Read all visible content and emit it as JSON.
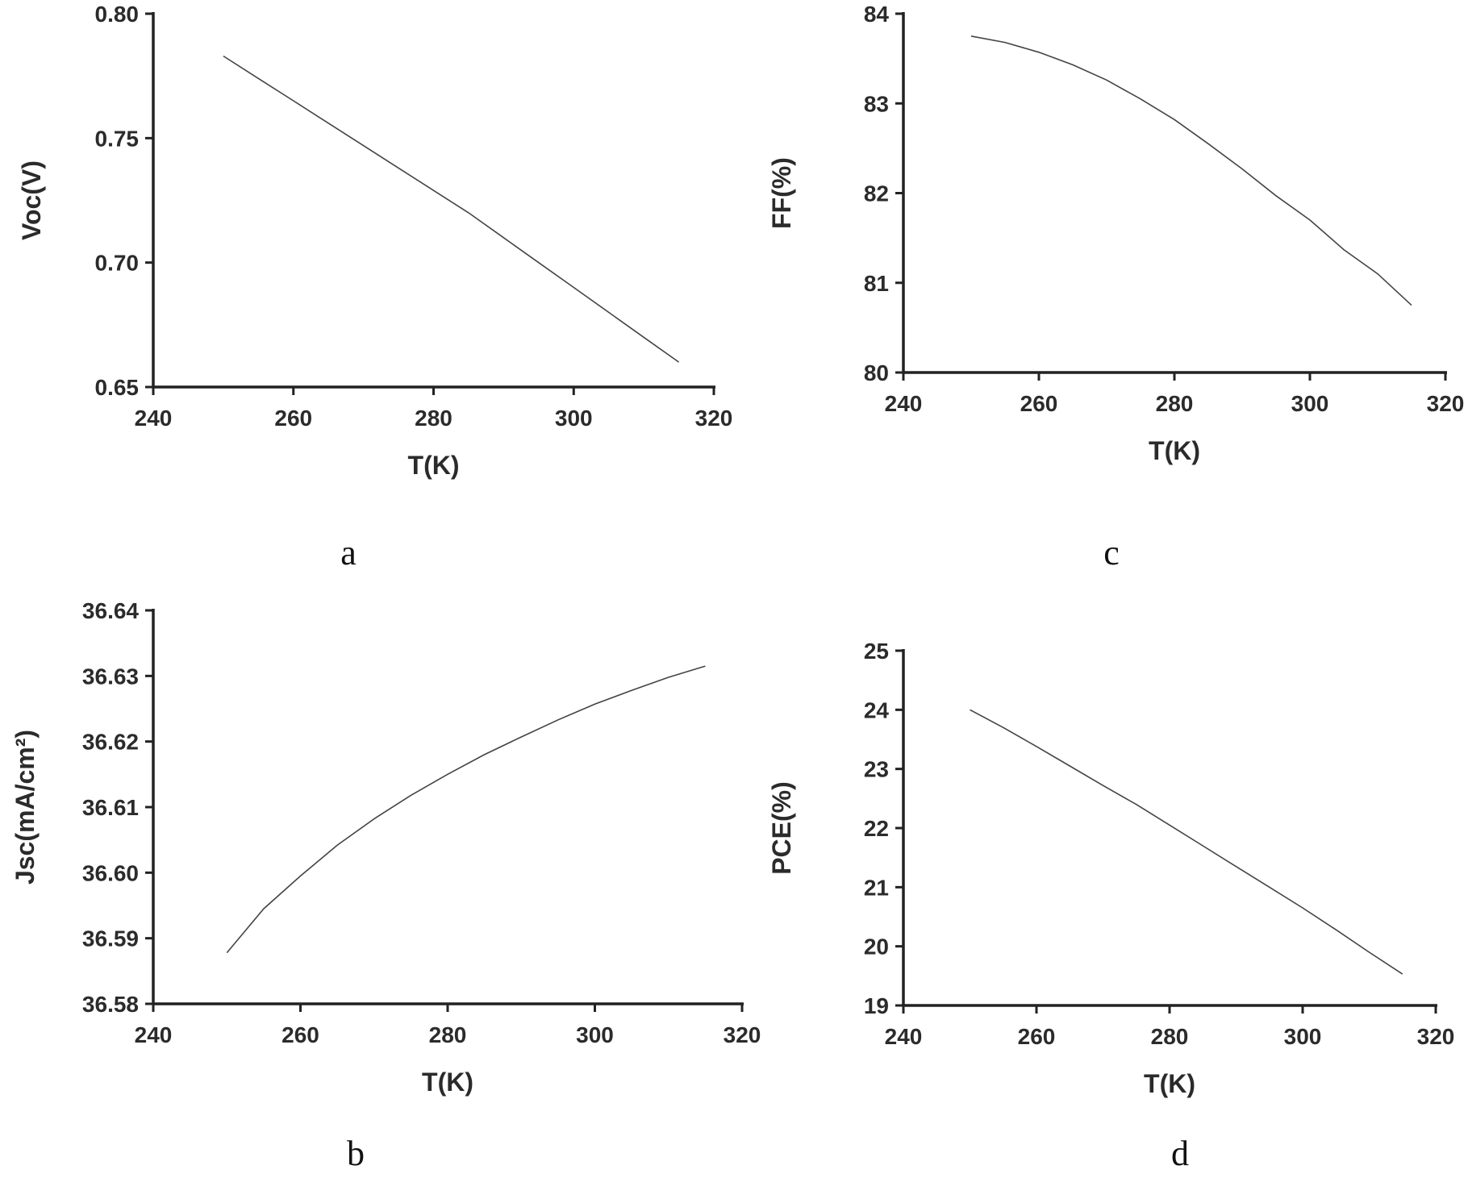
{
  "chart_data": [
    {
      "id": "a",
      "type": "line",
      "panel_label": "a",
      "xlabel": "T(K)",
      "ylabel": "Voc(V)",
      "xlim": [
        240,
        320
      ],
      "ylim": [
        0.65,
        0.8
      ],
      "xticks": [
        "240",
        "260",
        "280",
        "300",
        "320"
      ],
      "yticks": [
        "0.65",
        "0.70",
        "0.75",
        "0.80"
      ],
      "grid": false,
      "series": [
        {
          "x": [
            250,
            255,
            260,
            265,
            270,
            275,
            280,
            285,
            290,
            295,
            300,
            305,
            310,
            315
          ],
          "y": [
            0.783,
            0.774,
            0.765,
            0.756,
            0.747,
            0.738,
            0.729,
            0.72,
            0.71,
            0.7,
            0.69,
            0.68,
            0.67,
            0.66
          ]
        }
      ]
    },
    {
      "id": "c",
      "type": "line",
      "panel_label": "c",
      "xlabel": "T(K)",
      "ylabel": "FF(%)",
      "xlim": [
        240,
        320
      ],
      "ylim": [
        80,
        84
      ],
      "xticks": [
        "240",
        "260",
        "280",
        "300",
        "320"
      ],
      "yticks": [
        "80",
        "81",
        "82",
        "83",
        "84"
      ],
      "grid": false,
      "series": [
        {
          "x": [
            250,
            255,
            260,
            265,
            270,
            275,
            280,
            285,
            290,
            295,
            300,
            305,
            310,
            315
          ],
          "y": [
            83.75,
            83.68,
            83.57,
            83.43,
            83.26,
            83.05,
            82.82,
            82.55,
            82.27,
            81.97,
            81.7,
            81.37,
            81.1,
            80.75
          ]
        }
      ]
    },
    {
      "id": "b",
      "type": "line",
      "panel_label": "b",
      "xlabel": "T(K)",
      "ylabel": "Jsc(mA/cm²)",
      "xlim": [
        240,
        320
      ],
      "ylim": [
        36.58,
        36.64
      ],
      "xticks": [
        "240",
        "260",
        "280",
        "300",
        "320"
      ],
      "yticks": [
        "36.58",
        "36.59",
        "36.60",
        "36.61",
        "36.62",
        "36.63",
        "36.64"
      ],
      "grid": false,
      "series": [
        {
          "x": [
            250,
            255,
            260,
            265,
            270,
            275,
            280,
            285,
            290,
            295,
            300,
            305,
            310,
            315
          ],
          "y": [
            36.5878,
            36.5945,
            36.5995,
            36.6042,
            36.6082,
            36.6118,
            36.615,
            36.618,
            36.6207,
            36.6233,
            36.6257,
            36.6278,
            36.6298,
            36.6315
          ]
        }
      ]
    },
    {
      "id": "d",
      "type": "line",
      "panel_label": "d",
      "xlabel": "T(K)",
      "ylabel": "PCE(%)",
      "xlim": [
        240,
        320
      ],
      "ylim": [
        19,
        25
      ],
      "xticks": [
        "240",
        "260",
        "280",
        "300",
        "320"
      ],
      "yticks": [
        "19",
        "20",
        "21",
        "22",
        "23",
        "24",
        "25"
      ],
      "grid": false,
      "series": [
        {
          "x": [
            250,
            255,
            260,
            265,
            270,
            275,
            280,
            285,
            290,
            295,
            300,
            305,
            310,
            315
          ],
          "y": [
            24.0,
            23.7,
            23.38,
            23.05,
            22.72,
            22.4,
            22.05,
            21.7,
            21.35,
            21.0,
            20.65,
            20.28,
            19.9,
            19.53
          ]
        }
      ]
    }
  ]
}
